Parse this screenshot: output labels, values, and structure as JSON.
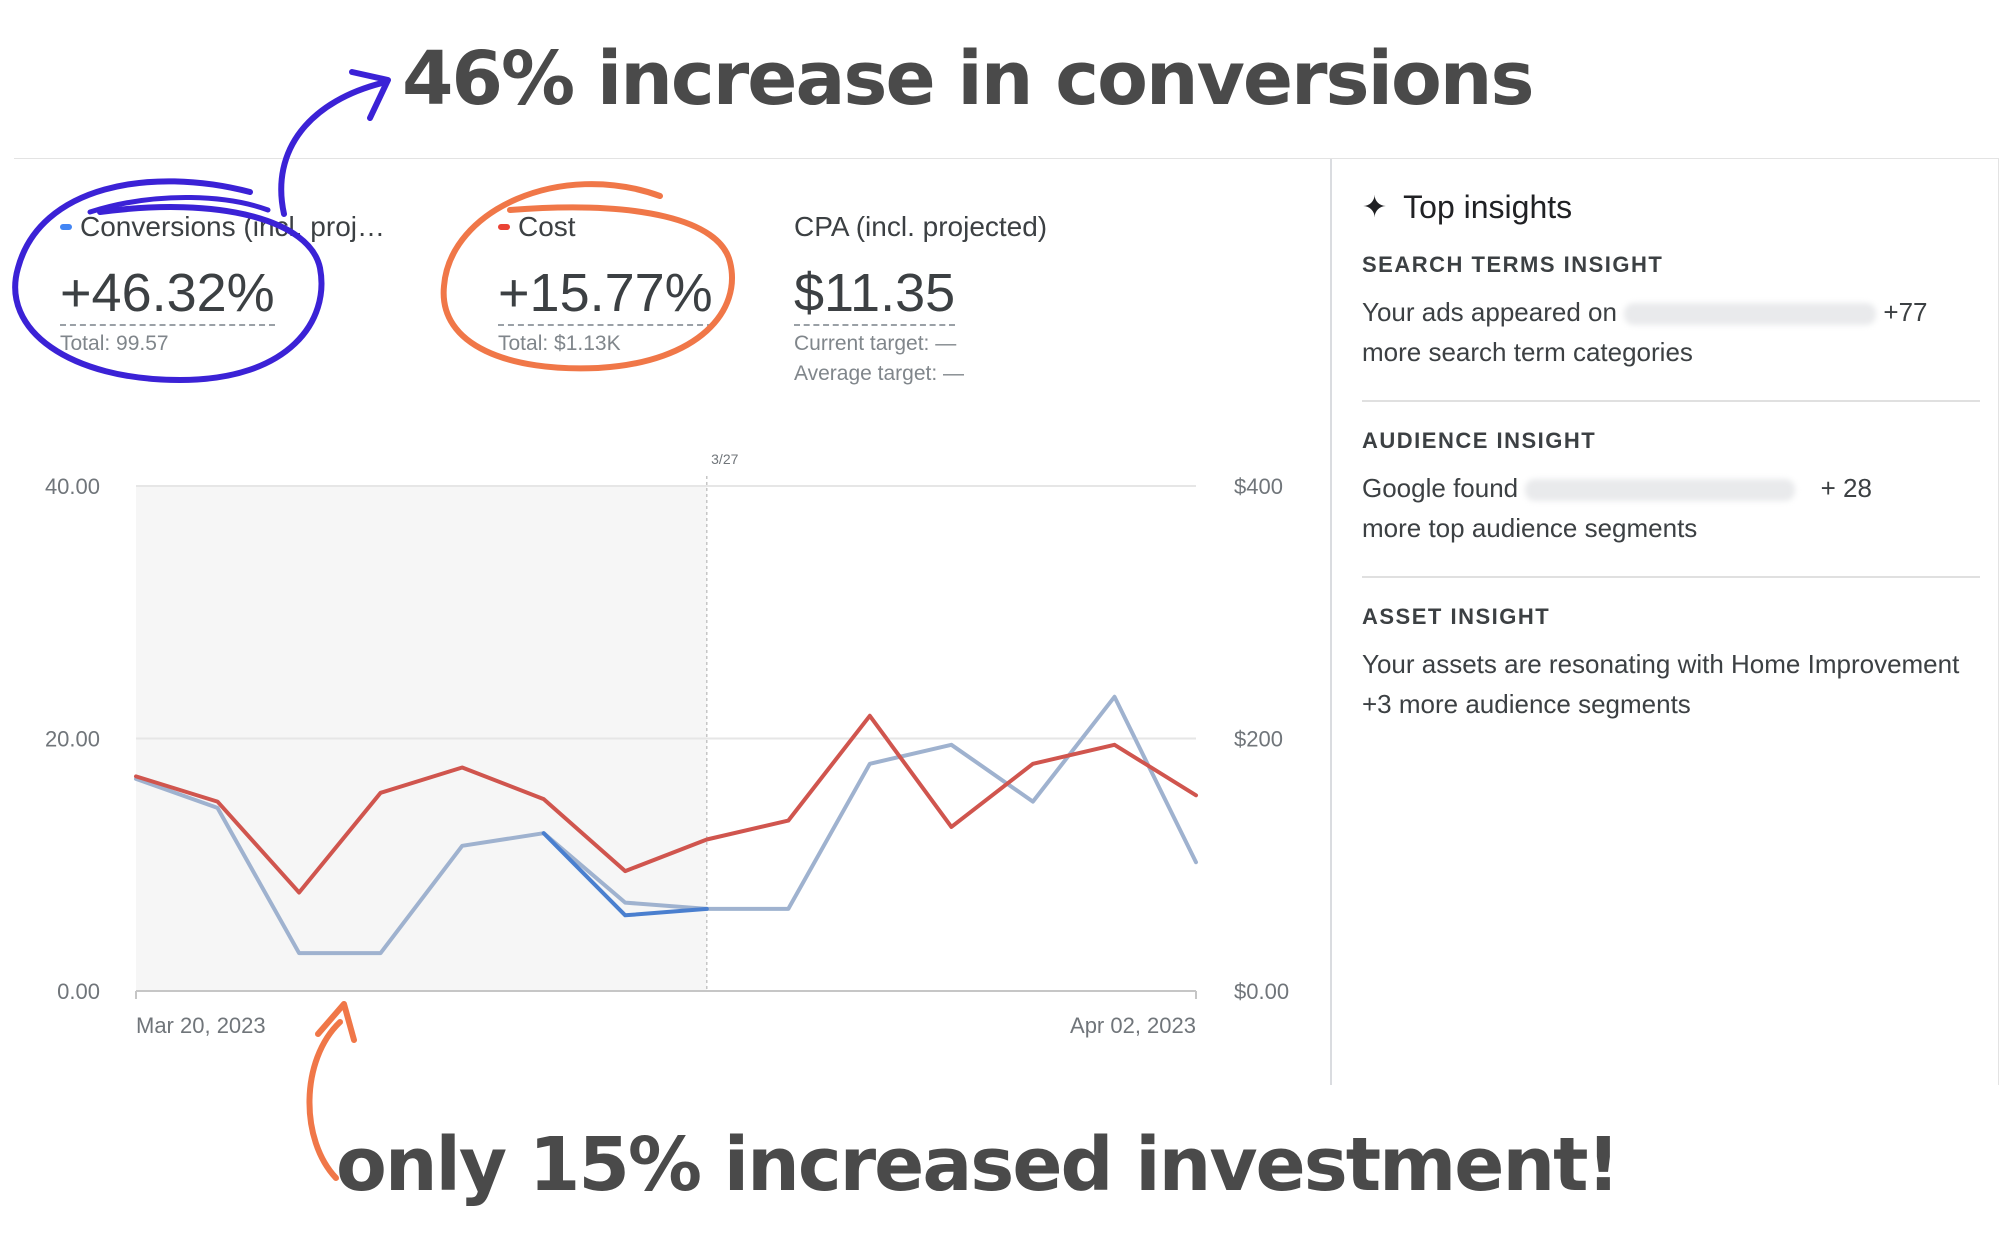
{
  "headline_top": "46% increase in conversions",
  "headline_bottom": "only 15% increased investment!",
  "metrics": {
    "conversions": {
      "label": "Conversions (incl. proj…",
      "value": "+46.32%",
      "total": "Total: 99.57",
      "dot_color": "#4285f4"
    },
    "cost": {
      "label": "Cost",
      "value": "+15.77%",
      "total": "Total: $1.13K",
      "dot_color": "#ea4335"
    },
    "cpa": {
      "label": "CPA (incl. projected)",
      "value": "$11.35",
      "current_target": "Current target: —",
      "average_target": "Average target: —"
    }
  },
  "chart_data": {
    "type": "line",
    "x_start_label": "Mar 20, 2023",
    "x_end_label": "Apr 02, 2023",
    "marker_label": "3/27",
    "marker_index": 7,
    "left_axis": {
      "ticks": [
        "0.00",
        "20.00",
        "40.00"
      ],
      "ylim": [
        0,
        40
      ]
    },
    "right_axis": {
      "ticks": [
        "$0.00",
        "$200",
        "$400"
      ],
      "ylim": [
        0,
        400
      ]
    },
    "series": [
      {
        "axis": "left",
        "color": "#9fb2cf",
        "values": [
          16.8,
          14.5,
          3.0,
          3.0,
          11.5,
          12.5,
          7.0,
          6.5,
          6.5,
          18.0,
          19.5,
          15.0,
          23.3,
          10.2
        ]
      },
      {
        "axis": "left",
        "color": "#4a7fcf",
        "values": [
          null,
          null,
          null,
          null,
          null,
          12.5,
          6.0,
          6.5,
          null,
          null,
          null,
          null,
          null,
          null
        ]
      },
      {
        "axis": "right",
        "color": "#d0554e",
        "values": [
          170,
          150,
          78,
          157,
          177,
          152,
          95,
          120,
          135,
          218,
          130,
          180,
          195,
          155
        ]
      }
    ]
  },
  "insights": {
    "header": "Top insights",
    "items": [
      {
        "title": "SEARCH TERMS INSIGHT",
        "before": "Your ads appeared on",
        "after": "+77",
        "line2": "more search term categories"
      },
      {
        "title": "AUDIENCE INSIGHT",
        "before": "Google found",
        "after": "+ 28",
        "line2": "more top audience segments"
      },
      {
        "title": "ASSET INSIGHT",
        "text": "Your assets are resonating with Home Improvement +3 more audience segments"
      }
    ]
  },
  "colors": {
    "annotation_blue": "#3b22d6",
    "annotation_orange": "#f07748"
  },
  "icons": {
    "insights": "sparkle-icon",
    "arrows": "curved-arrow-icon"
  }
}
